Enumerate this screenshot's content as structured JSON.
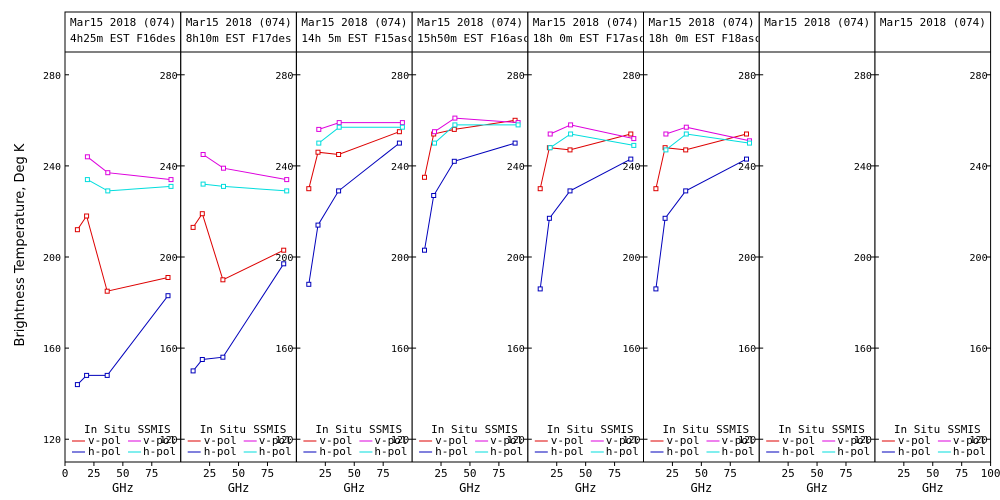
{
  "figure": {
    "ylabel": "Brightness Temperature, Deg K",
    "xlabel": "GHz",
    "colors": {
      "insitu_v": "#dd0000",
      "insitu_h": "#0000bb",
      "ssmis_v": "#dd00dd",
      "ssmis_h": "#00dddd",
      "axis": "#000000"
    },
    "legend": {
      "insitu_header": "In Situ",
      "ssmis_header": "SSMIS",
      "vpol": "v-pol",
      "hpol": "h-pol"
    }
  },
  "chart_data": [
    {
      "type": "line",
      "title_line1": "Mar15 2018 (074)",
      "title_line2": "4h25m EST F16des",
      "xlabel": "GHz",
      "ylabel": "Brightness Temperature, Deg K",
      "xlim": [
        0,
        100
      ],
      "ylim": [
        110,
        290
      ],
      "xticks": [
        "0",
        "25",
        "50",
        "75"
      ],
      "yticks": [
        "120",
        "160",
        "200",
        "240",
        "280"
      ],
      "series": [
        {
          "name": "In Situ v-pol",
          "color": "#dd0000",
          "x": [
            10.7,
            18.7,
            36.5,
            89
          ],
          "values": [
            212,
            218,
            185,
            191
          ]
        },
        {
          "name": "In Situ h-pol",
          "color": "#0000bb",
          "x": [
            10.7,
            18.7,
            36.5,
            89
          ],
          "values": [
            144,
            148,
            148,
            183
          ]
        },
        {
          "name": "SSMIS v-pol",
          "color": "#dd00dd",
          "x": [
            19.35,
            37,
            91.655
          ],
          "values": [
            244,
            237,
            234
          ]
        },
        {
          "name": "SSMIS h-pol",
          "color": "#00dddd",
          "x": [
            19.35,
            37,
            91.655
          ],
          "values": [
            234,
            229,
            231
          ]
        }
      ]
    },
    {
      "type": "line",
      "title_line1": "Mar15 2018 (074)",
      "title_line2": "8h10m EST F17des",
      "xlabel": "GHz",
      "ylabel": "",
      "xlim": [
        0,
        100
      ],
      "ylim": [
        110,
        290
      ],
      "xticks": [
        "25",
        "50",
        "75"
      ],
      "yticks": [
        "120",
        "160",
        "200",
        "240",
        "280"
      ],
      "series": [
        {
          "name": "In Situ v-pol",
          "color": "#dd0000",
          "x": [
            10.7,
            18.7,
            36.5,
            89
          ],
          "values": [
            213,
            219,
            190,
            203
          ]
        },
        {
          "name": "In Situ h-pol",
          "color": "#0000bb",
          "x": [
            10.7,
            18.7,
            36.5,
            89
          ],
          "values": [
            150,
            155,
            156,
            197
          ]
        },
        {
          "name": "SSMIS v-pol",
          "color": "#dd00dd",
          "x": [
            19.35,
            37,
            91.655
          ],
          "values": [
            245,
            239,
            234
          ]
        },
        {
          "name": "SSMIS h-pol",
          "color": "#00dddd",
          "x": [
            19.35,
            37,
            91.655
          ],
          "values": [
            232,
            231,
            229
          ]
        }
      ]
    },
    {
      "type": "line",
      "title_line1": "Mar15 2018 (074)",
      "title_line2": "14h 5m EST F15asc",
      "xlabel": "GHz",
      "ylabel": "",
      "xlim": [
        0,
        100
      ],
      "ylim": [
        110,
        290
      ],
      "xticks": [
        "25",
        "50",
        "75"
      ],
      "yticks": [
        "120",
        "160",
        "200",
        "240",
        "280"
      ],
      "series": [
        {
          "name": "In Situ v-pol",
          "color": "#dd0000",
          "x": [
            10.7,
            18.7,
            36.5,
            89
          ],
          "values": [
            230,
            246,
            245,
            255
          ]
        },
        {
          "name": "In Situ h-pol",
          "color": "#0000bb",
          "x": [
            10.7,
            18.7,
            36.5,
            89
          ],
          "values": [
            188,
            214,
            229,
            250
          ]
        },
        {
          "name": "SSMIS v-pol",
          "color": "#dd00dd",
          "x": [
            19.35,
            37,
            91.655
          ],
          "values": [
            256,
            259,
            259
          ]
        },
        {
          "name": "SSMIS h-pol",
          "color": "#00dddd",
          "x": [
            19.35,
            37,
            91.655
          ],
          "values": [
            250,
            257,
            257
          ]
        }
      ]
    },
    {
      "type": "line",
      "title_line1": "Mar15 2018 (074)",
      "title_line2": "15h50m EST F16asc",
      "xlabel": "GHz",
      "ylabel": "",
      "xlim": [
        0,
        100
      ],
      "ylim": [
        110,
        290
      ],
      "xticks": [
        "25",
        "50",
        "75"
      ],
      "yticks": [
        "120",
        "160",
        "200",
        "240",
        "280"
      ],
      "series": [
        {
          "name": "In Situ v-pol",
          "color": "#dd0000",
          "x": [
            10.7,
            18.7,
            36.5,
            89
          ],
          "values": [
            235,
            254,
            256,
            260
          ]
        },
        {
          "name": "In Situ h-pol",
          "color": "#0000bb",
          "x": [
            10.7,
            18.7,
            36.5,
            89
          ],
          "values": [
            203,
            227,
            242,
            250
          ]
        },
        {
          "name": "SSMIS v-pol",
          "color": "#dd00dd",
          "x": [
            19.35,
            37,
            91.655
          ],
          "values": [
            255,
            261,
            259
          ]
        },
        {
          "name": "SSMIS h-pol",
          "color": "#00dddd",
          "x": [
            19.35,
            37,
            91.655
          ],
          "values": [
            250,
            258,
            258
          ]
        }
      ]
    },
    {
      "type": "line",
      "title_line1": "Mar15 2018 (074)",
      "title_line2": "18h 0m EST F17asc",
      "xlabel": "GHz",
      "ylabel": "",
      "xlim": [
        0,
        100
      ],
      "ylim": [
        110,
        290
      ],
      "xticks": [
        "25",
        "50",
        "75"
      ],
      "yticks": [
        "120",
        "160",
        "200",
        "240",
        "280"
      ],
      "series": [
        {
          "name": "In Situ v-pol",
          "color": "#dd0000",
          "x": [
            10.7,
            18.7,
            36.5,
            89
          ],
          "values": [
            230,
            248,
            247,
            254
          ]
        },
        {
          "name": "In Situ h-pol",
          "color": "#0000bb",
          "x": [
            10.7,
            18.7,
            36.5,
            89
          ],
          "values": [
            186,
            217,
            229,
            243
          ]
        },
        {
          "name": "SSMIS v-pol",
          "color": "#dd00dd",
          "x": [
            19.35,
            37,
            91.655
          ],
          "values": [
            254,
            258,
            252
          ]
        },
        {
          "name": "SSMIS h-pol",
          "color": "#00dddd",
          "x": [
            19.35,
            37,
            91.655
          ],
          "values": [
            248,
            254,
            249
          ]
        }
      ]
    },
    {
      "type": "line",
      "title_line1": "Mar15 2018 (074)",
      "title_line2": "18h 0m EST F18asc",
      "xlabel": "GHz",
      "ylabel": "",
      "xlim": [
        0,
        100
      ],
      "ylim": [
        110,
        290
      ],
      "xticks": [
        "25",
        "50",
        "75"
      ],
      "yticks": [
        "120",
        "160",
        "200",
        "240",
        "280"
      ],
      "series": [
        {
          "name": "In Situ v-pol",
          "color": "#dd0000",
          "x": [
            10.7,
            18.7,
            36.5,
            89
          ],
          "values": [
            230,
            248,
            247,
            254
          ]
        },
        {
          "name": "In Situ h-pol",
          "color": "#0000bb",
          "x": [
            10.7,
            18.7,
            36.5,
            89
          ],
          "values": [
            186,
            217,
            229,
            243
          ]
        },
        {
          "name": "SSMIS v-pol",
          "color": "#dd00dd",
          "x": [
            19.35,
            37,
            91.655
          ],
          "values": [
            254,
            257,
            251
          ]
        },
        {
          "name": "SSMIS h-pol",
          "color": "#00dddd",
          "x": [
            19.35,
            37,
            91.655
          ],
          "values": [
            247,
            254,
            250
          ]
        }
      ]
    },
    {
      "type": "line",
      "title_line1": "Mar15 2018 (074)",
      "title_line2": "",
      "xlabel": "GHz",
      "ylabel": "",
      "xlim": [
        0,
        100
      ],
      "ylim": [
        110,
        290
      ],
      "xticks": [
        "25",
        "50",
        "75"
      ],
      "yticks": [
        "120",
        "160",
        "200",
        "240",
        "280"
      ],
      "series": []
    },
    {
      "type": "line",
      "title_line1": "Mar15 2018 (074)",
      "title_line2": "",
      "xlabel": "GHz",
      "ylabel": "",
      "xlim": [
        0,
        100
      ],
      "ylim": [
        110,
        290
      ],
      "xticks": [
        "25",
        "50",
        "75",
        "100"
      ],
      "yticks": [
        "120",
        "160",
        "200",
        "240",
        "280"
      ],
      "series": []
    }
  ]
}
